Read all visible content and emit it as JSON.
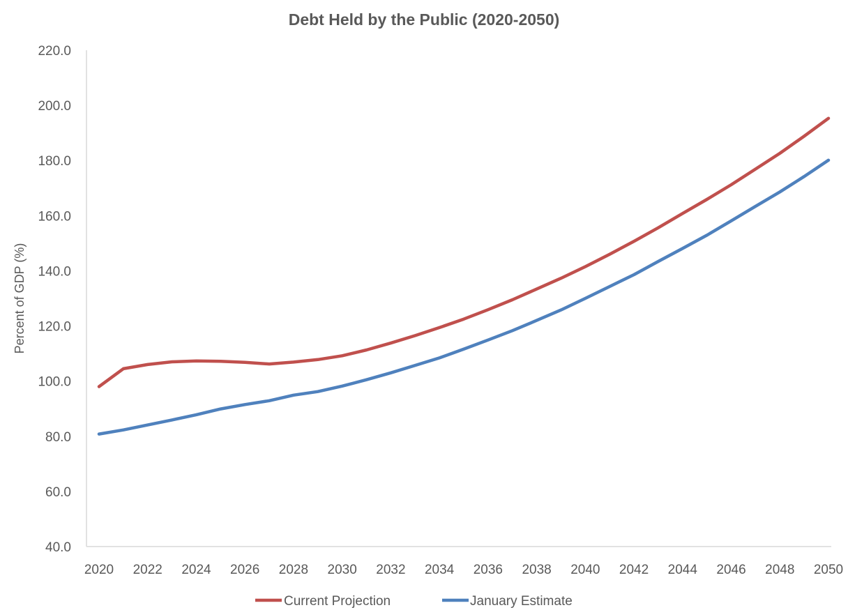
{
  "chart_data": {
    "type": "line",
    "title": "Debt Held by the Public (2020-2050)",
    "ylabel": "Percent of GDP (%)",
    "xlabel": "",
    "ylim": [
      40,
      220
    ],
    "xlim": [
      2020,
      2050
    ],
    "y_ticks": [
      "40.0",
      "60.0",
      "80.0",
      "100.0",
      "120.0",
      "140.0",
      "160.0",
      "180.0",
      "200.0",
      "220.0"
    ],
    "x_ticks": [
      "2020",
      "2022",
      "2024",
      "2026",
      "2028",
      "2030",
      "2032",
      "2034",
      "2036",
      "2038",
      "2040",
      "2042",
      "2044",
      "2046",
      "2048",
      "2050"
    ],
    "x": [
      2020,
      2021,
      2022,
      2023,
      2024,
      2025,
      2026,
      2027,
      2028,
      2029,
      2030,
      2031,
      2032,
      2033,
      2034,
      2035,
      2036,
      2037,
      2038,
      2039,
      2040,
      2041,
      2042,
      2043,
      2044,
      2045,
      2046,
      2047,
      2048,
      2049,
      2050
    ],
    "grid": false,
    "legend_position": "bottom",
    "series": [
      {
        "name": "Current Projection",
        "color": "#C0504D",
        "values": [
          98.0,
          104.5,
          106.0,
          107.0,
          107.3,
          107.2,
          106.8,
          106.2,
          106.9,
          107.8,
          109.2,
          111.3,
          113.8,
          116.5,
          119.4,
          122.5,
          125.9,
          129.5,
          133.4,
          137.3,
          141.5,
          146.0,
          150.7,
          155.6,
          160.8,
          165.9,
          171.2,
          176.9,
          182.6,
          188.8,
          195.3
        ]
      },
      {
        "name": "January Estimate",
        "color": "#4F81BD",
        "values": [
          80.8,
          82.3,
          84.1,
          85.9,
          87.8,
          89.9,
          91.5,
          92.9,
          94.9,
          96.2,
          98.2,
          100.5,
          103.0,
          105.7,
          108.4,
          111.6,
          114.9,
          118.3,
          122.0,
          125.8,
          130.0,
          134.3,
          138.6,
          143.4,
          148.1,
          152.9,
          158.1,
          163.4,
          168.6,
          174.2,
          180.1
        ]
      }
    ]
  }
}
